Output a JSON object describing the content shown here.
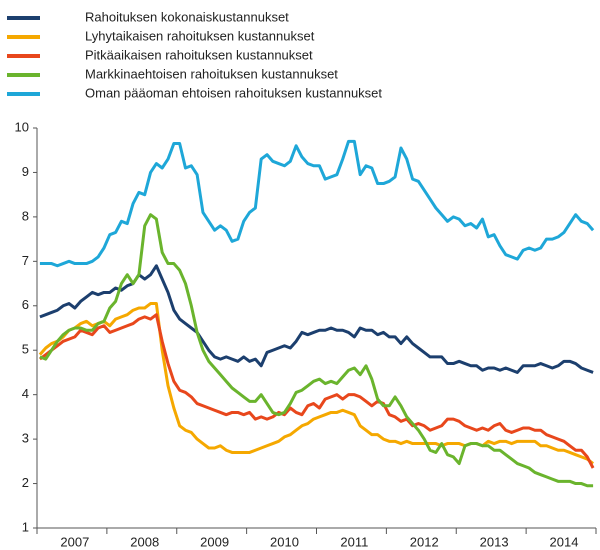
{
  "chart_data": {
    "type": "line",
    "categories": [
      null,
      null,
      null,
      null,
      null,
      null,
      "2007",
      null,
      null,
      null,
      null,
      null,
      null,
      null,
      null,
      null,
      null,
      null,
      "2008",
      null,
      null,
      null,
      null,
      null,
      null,
      null,
      null,
      null,
      null,
      null,
      "2009",
      null,
      null,
      null,
      null,
      null,
      null,
      null,
      null,
      null,
      null,
      null,
      "2010",
      null,
      null,
      null,
      null,
      null,
      null,
      null,
      null,
      null,
      null,
      null,
      "2011",
      null,
      null,
      null,
      null,
      null,
      null,
      null,
      null,
      null,
      null,
      null,
      "2012",
      null,
      null,
      null,
      null,
      null,
      null,
      null,
      null,
      null,
      null,
      null,
      "2013",
      null,
      null,
      null,
      null,
      null,
      null,
      null,
      null,
      null,
      null,
      null,
      "2014",
      null,
      null,
      null,
      null,
      null
    ],
    "series": [
      {
        "name": "Rahoituksen kokonaiskustannukset",
        "color": "#1c3f6e",
        "values": [
          5.75,
          5.8,
          5.85,
          5.9,
          6.0,
          6.05,
          5.95,
          6.1,
          6.2,
          6.3,
          6.25,
          6.3,
          6.3,
          6.4,
          6.35,
          6.45,
          6.5,
          6.7,
          6.6,
          6.7,
          6.9,
          6.6,
          6.3,
          5.9,
          5.7,
          5.6,
          5.5,
          5.4,
          5.2,
          5.0,
          4.85,
          4.8,
          4.85,
          4.8,
          4.75,
          4.85,
          4.75,
          4.8,
          4.65,
          4.95,
          5.0,
          5.05,
          5.1,
          5.05,
          5.2,
          5.4,
          5.35,
          5.4,
          5.45,
          5.45,
          5.5,
          5.45,
          5.45,
          5.4,
          5.3,
          5.5,
          5.45,
          5.45,
          5.35,
          5.4,
          5.3,
          5.3,
          5.15,
          5.3,
          5.15,
          5.05,
          4.95,
          4.85,
          4.85,
          4.85,
          4.7,
          4.7,
          4.75,
          4.7,
          4.65,
          4.65,
          4.55,
          4.6,
          4.6,
          4.55,
          4.6,
          4.55,
          4.5,
          4.65,
          4.65,
          4.65,
          4.7,
          4.65,
          4.6,
          4.65,
          4.75,
          4.75,
          4.7,
          4.6,
          4.55,
          4.5
        ]
      },
      {
        "name": "Lyhytaikaisen rahoituksen kustannukset",
        "color": "#f5a800",
        "values": [
          4.9,
          5.05,
          5.15,
          5.2,
          5.3,
          5.45,
          5.5,
          5.6,
          5.65,
          5.55,
          5.6,
          5.65,
          5.55,
          5.7,
          5.75,
          5.8,
          5.9,
          5.95,
          5.95,
          6.05,
          6.05,
          5.0,
          4.2,
          3.7,
          3.3,
          3.2,
          3.15,
          3.0,
          2.9,
          2.8,
          2.8,
          2.85,
          2.75,
          2.7,
          2.7,
          2.7,
          2.7,
          2.75,
          2.8,
          2.85,
          2.9,
          2.95,
          3.05,
          3.1,
          3.2,
          3.3,
          3.35,
          3.45,
          3.5,
          3.55,
          3.6,
          3.6,
          3.65,
          3.6,
          3.55,
          3.3,
          3.2,
          3.1,
          3.1,
          3.0,
          2.95,
          2.95,
          2.9,
          2.95,
          2.9,
          2.9,
          2.9,
          2.9,
          2.9,
          2.85,
          2.9,
          2.9,
          2.9,
          2.85,
          2.9,
          2.9,
          2.85,
          2.95,
          2.9,
          2.95,
          2.95,
          2.9,
          2.95,
          2.95,
          2.95,
          2.95,
          2.85,
          2.85,
          2.8,
          2.75,
          2.75,
          2.7,
          2.65,
          2.6,
          2.55,
          2.45
        ]
      },
      {
        "name": "Pitkäaikaisen rahoituksen kustannukset",
        "color": "#e8471c",
        "values": [
          4.8,
          4.9,
          5.0,
          5.1,
          5.2,
          5.25,
          5.3,
          5.45,
          5.4,
          5.35,
          5.5,
          5.55,
          5.4,
          5.45,
          5.5,
          5.55,
          5.6,
          5.7,
          5.75,
          5.7,
          5.8,
          5.2,
          4.7,
          4.3,
          4.1,
          4.05,
          3.95,
          3.8,
          3.75,
          3.7,
          3.65,
          3.6,
          3.55,
          3.6,
          3.6,
          3.55,
          3.6,
          3.45,
          3.5,
          3.45,
          3.5,
          3.6,
          3.55,
          3.7,
          3.6,
          3.55,
          3.75,
          3.8,
          3.7,
          3.9,
          3.95,
          4.0,
          3.9,
          4.0,
          4.0,
          3.95,
          3.85,
          3.75,
          3.85,
          3.8,
          3.55,
          3.5,
          3.4,
          3.45,
          3.3,
          3.35,
          3.3,
          3.2,
          3.25,
          3.3,
          3.45,
          3.45,
          3.4,
          3.3,
          3.25,
          3.2,
          3.25,
          3.2,
          3.3,
          3.35,
          3.2,
          3.15,
          3.2,
          3.25,
          3.25,
          3.2,
          3.2,
          3.1,
          3.05,
          3.0,
          2.95,
          2.85,
          2.75,
          2.75,
          2.6,
          2.35
        ]
      },
      {
        "name": "Markkinaehtoisen rahoituksen kustannukset",
        "color": "#6ab42d",
        "values": [
          4.85,
          4.8,
          5.0,
          5.2,
          5.35,
          5.45,
          5.5,
          5.5,
          5.45,
          5.45,
          5.6,
          5.65,
          5.95,
          6.1,
          6.5,
          6.7,
          6.5,
          6.7,
          7.8,
          8.05,
          7.95,
          7.2,
          6.95,
          6.95,
          6.8,
          6.5,
          6.0,
          5.4,
          5.0,
          4.75,
          4.6,
          4.45,
          4.3,
          4.15,
          4.05,
          3.95,
          3.85,
          3.85,
          4.0,
          3.8,
          3.6,
          3.55,
          3.6,
          3.8,
          4.05,
          4.1,
          4.2,
          4.3,
          4.35,
          4.25,
          4.3,
          4.25,
          4.4,
          4.55,
          4.6,
          4.45,
          4.65,
          4.35,
          3.9,
          3.75,
          3.75,
          3.95,
          3.75,
          3.5,
          3.35,
          3.2,
          3.0,
          2.75,
          2.7,
          2.9,
          2.65,
          2.6,
          2.45,
          2.85,
          2.9,
          2.9,
          2.85,
          2.85,
          2.75,
          2.75,
          2.65,
          2.55,
          2.45,
          2.4,
          2.35,
          2.25,
          2.2,
          2.15,
          2.1,
          2.05,
          2.05,
          2.05,
          2.0,
          2.0,
          1.95,
          1.95
        ]
      },
      {
        "name": "Oman pääoman ehtoisen rahoituksen kustannukset",
        "color": "#1ea7d8",
        "values": [
          6.95,
          6.95,
          6.95,
          6.9,
          6.95,
          7.0,
          6.95,
          6.95,
          6.95,
          7.0,
          7.1,
          7.3,
          7.6,
          7.65,
          7.9,
          7.85,
          8.3,
          8.55,
          8.5,
          9.0,
          9.2,
          9.1,
          9.3,
          9.65,
          9.65,
          9.1,
          9.15,
          8.95,
          8.1,
          7.9,
          7.7,
          7.8,
          7.7,
          7.45,
          7.5,
          7.9,
          8.1,
          8.2,
          9.3,
          9.4,
          9.25,
          9.2,
          9.15,
          9.25,
          9.6,
          9.35,
          9.2,
          9.15,
          9.15,
          8.85,
          8.9,
          8.95,
          9.3,
          9.7,
          9.7,
          8.95,
          9.15,
          9.1,
          8.75,
          8.75,
          8.8,
          8.9,
          9.55,
          9.3,
          8.85,
          8.8,
          8.6,
          8.4,
          8.2,
          8.05,
          7.9,
          8.0,
          7.95,
          7.8,
          7.85,
          7.75,
          7.95,
          7.55,
          7.6,
          7.35,
          7.15,
          7.1,
          7.05,
          7.25,
          7.3,
          7.25,
          7.3,
          7.5,
          7.5,
          7.55,
          7.65,
          7.85,
          8.05,
          7.9,
          7.85,
          7.7
        ]
      }
    ],
    "ylim": [
      1,
      10
    ],
    "yticks": [
      1,
      2,
      3,
      4,
      5,
      6,
      7,
      8,
      9,
      10
    ]
  }
}
